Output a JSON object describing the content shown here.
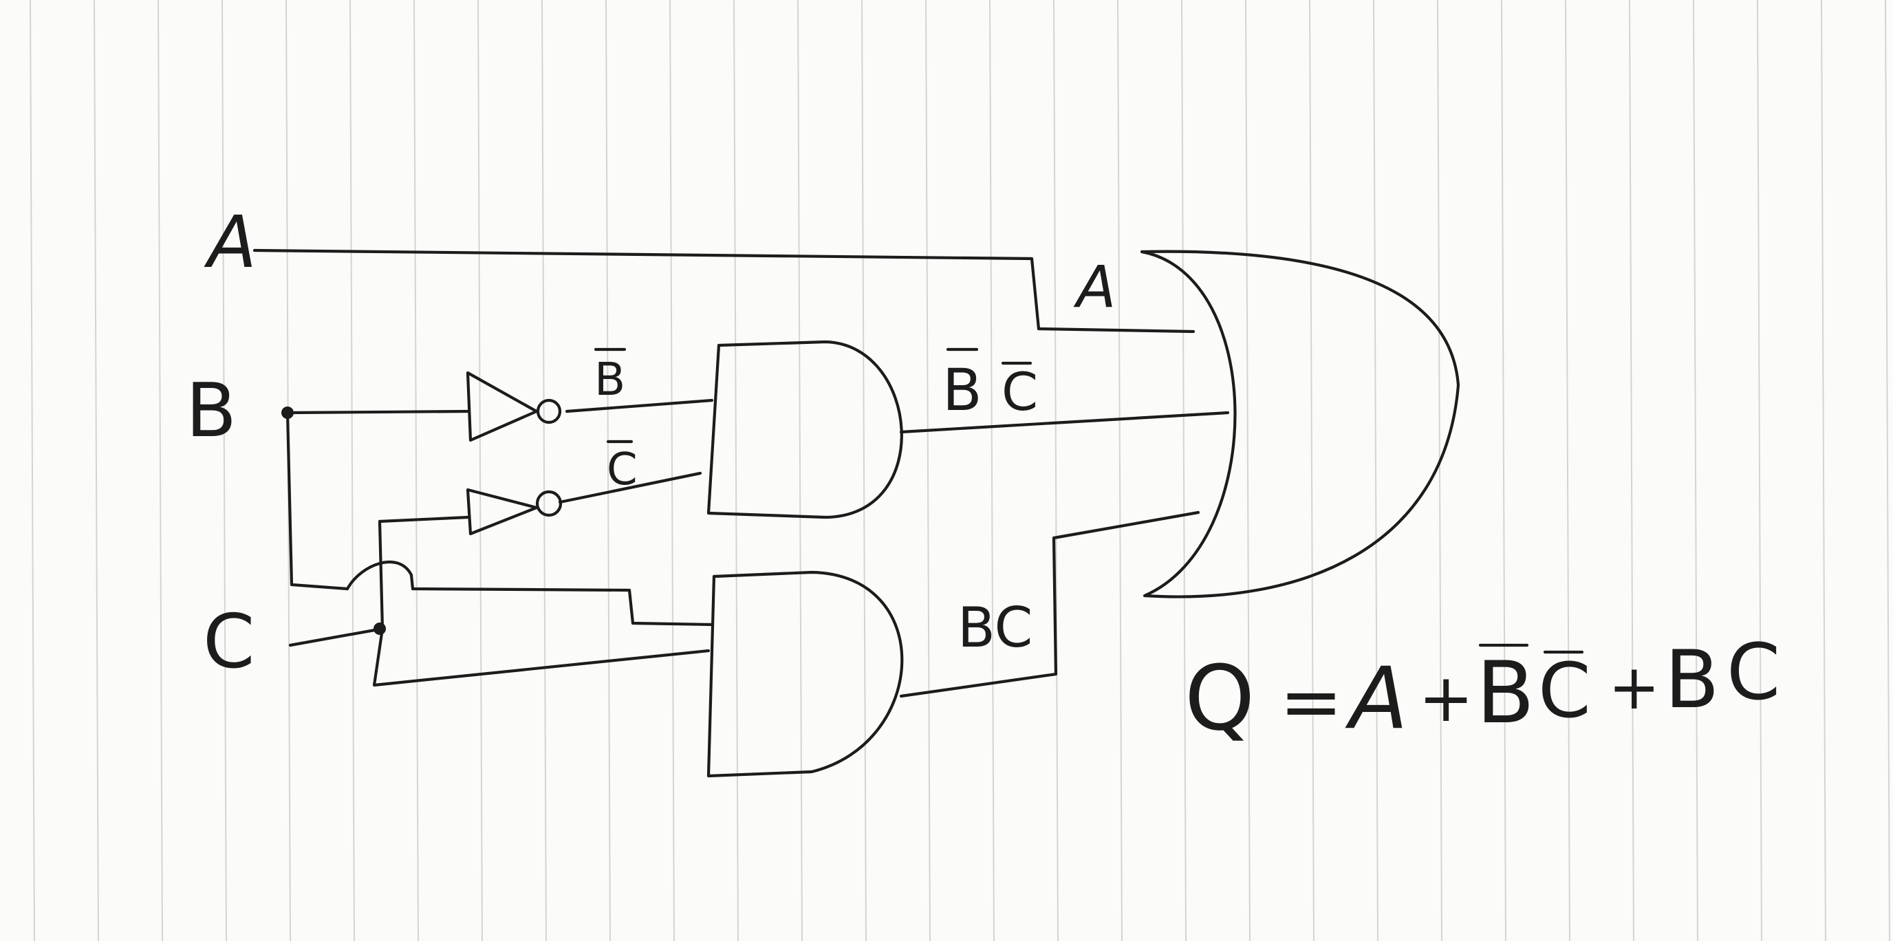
{
  "inputs": {
    "a": "A",
    "b": "B",
    "c": "C"
  },
  "signals": {
    "a_to_or": "A",
    "not_b": "B",
    "not_c": "C",
    "and1_out_b": "B",
    "and1_out_c": "C",
    "and2_out": "BC"
  },
  "equation": {
    "q": "Q",
    "eq": "=",
    "a": "A",
    "plus1": "+",
    "b_bar": "B",
    "c_bar": "C",
    "plus2": "+",
    "b": "B",
    "c": "C"
  },
  "colors": {
    "ink": "#1c1c1c",
    "paper": "#fbfbf9",
    "rule": "#d4d4d0"
  }
}
